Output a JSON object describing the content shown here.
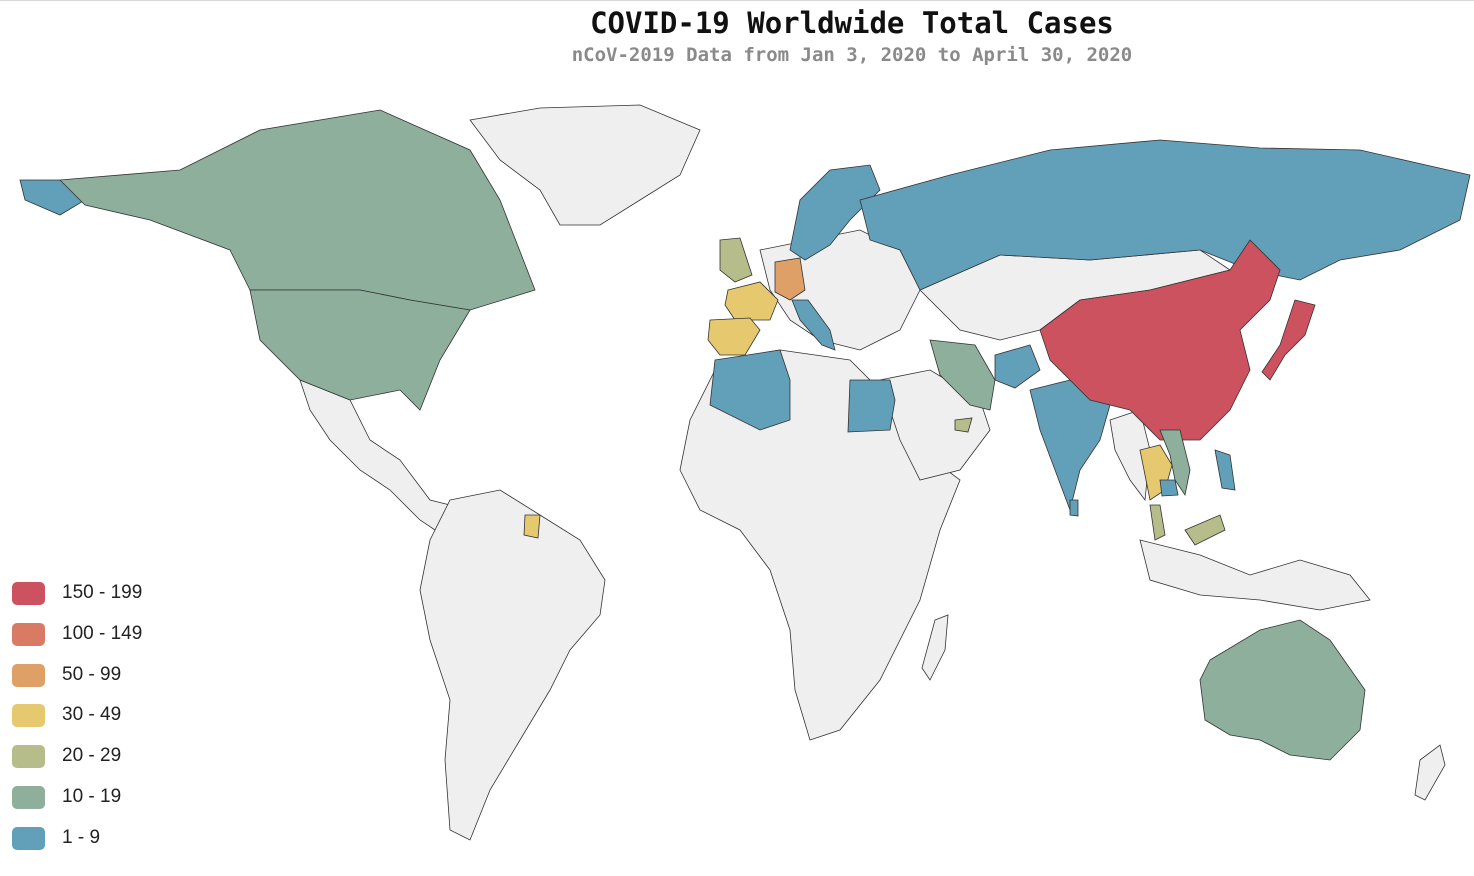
{
  "title": "COVID-19 Worldwide Total Cases",
  "subtitle": "nCoV-2019 Data from Jan 3, 2020 to April 30, 2020",
  "legend": [
    {
      "label": "150 - 199",
      "color": "#cd525f"
    },
    {
      "label": "100 - 149",
      "color": "#d97b64"
    },
    {
      "label": "50 - 99",
      "color": "#dea067"
    },
    {
      "label": "30 - 49",
      "color": "#e6c86f"
    },
    {
      "label": "20 - 29",
      "color": "#b7bd8a"
    },
    {
      "label": "10 - 19",
      "color": "#8daf9c"
    },
    {
      "label": "1 - 9",
      "color": "#629fb9"
    }
  ],
  "regions": {
    "china": "150 - 199",
    "japan": "150 - 199",
    "germany": "50 - 99",
    "france": "30 - 49",
    "spain": "30 - 49",
    "thailand": "30 - 49",
    "french-guiana": "30 - 49",
    "united-kingdom": "20 - 29",
    "malaysia": "20 - 29",
    "uae": "20 - 29",
    "canada": "10 - 19",
    "united-states": "10 - 19",
    "alaska": "1 - 9",
    "australia": "10 - 19",
    "iran": "10 - 19",
    "vietnam": "10 - 19",
    "russia": "1 - 9",
    "scandinavia": "1 - 9",
    "india": "1 - 9",
    "italy": "1 - 9",
    "algeria": "1 - 9",
    "egypt": "1 - 9",
    "afghanistan": "1 - 9",
    "cambodia": "1 - 9",
    "philippines": "1 - 9",
    "sri-lanka": "1 - 9"
  }
}
